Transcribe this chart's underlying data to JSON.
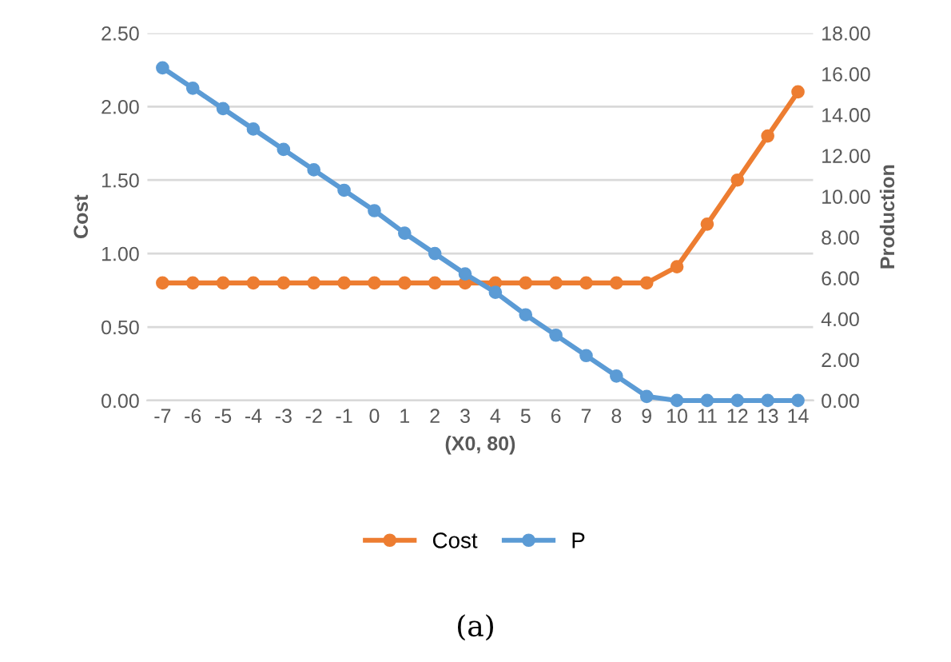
{
  "chart_data": {
    "type": "line",
    "xlabel": "(X0, 80)",
    "ylabel": "Cost",
    "y2label": "Production",
    "categories": [
      "-7",
      "-6",
      "-5",
      "-4",
      "-3",
      "-2",
      "-1",
      "0",
      "1",
      "2",
      "3",
      "4",
      "5",
      "6",
      "7",
      "8",
      "9",
      "10",
      "11",
      "12",
      "13",
      "14"
    ],
    "series": [
      {
        "name": "Cost",
        "color": "#ed7d31",
        "values": [
          0.8,
          0.8,
          0.8,
          0.8,
          0.8,
          0.8,
          0.8,
          0.8,
          0.8,
          0.8,
          0.8,
          0.8,
          0.8,
          0.8,
          0.8,
          0.8,
          0.8,
          0.91,
          1.2,
          1.5,
          1.8,
          2.1
        ]
      },
      {
        "name": "P",
        "color": "#5b9bd5",
        "axis": "y2",
        "values": [
          16.3,
          15.3,
          14.3,
          13.3,
          12.3,
          11.3,
          10.3,
          9.3,
          8.2,
          7.2,
          6.2,
          5.3,
          4.2,
          3.2,
          2.2,
          1.2,
          0.2,
          0,
          0,
          0,
          0,
          0
        ]
      }
    ],
    "ylim": [
      0,
      2.5
    ],
    "yticks": [
      {
        "value": 0,
        "label": "0.00"
      },
      {
        "value": 0.5,
        "label": "0.50"
      },
      {
        "value": 1,
        "label": "1.00"
      },
      {
        "value": 1.5,
        "label": "1.50"
      },
      {
        "value": 2,
        "label": "2.00"
      },
      {
        "value": 2.5,
        "label": "2.50"
      }
    ],
    "y2lim": [
      0,
      18
    ],
    "y2ticks": [
      {
        "value": 0,
        "label": "0.00"
      },
      {
        "value": 2,
        "label": "2.00"
      },
      {
        "value": 4,
        "label": "4.00"
      },
      {
        "value": 6,
        "label": "6.00"
      },
      {
        "value": 8,
        "label": "8.00"
      },
      {
        "value": 10,
        "label": "10.00"
      },
      {
        "value": 12,
        "label": "12.00"
      },
      {
        "value": 14,
        "label": "14.00"
      },
      {
        "value": 16,
        "label": "16.00"
      },
      {
        "value": 18,
        "label": "18.00"
      }
    ],
    "grid": "y",
    "legend": "bottom",
    "marker": "circle",
    "line_style": "solid",
    "annotations": [
      "(a)"
    ]
  }
}
